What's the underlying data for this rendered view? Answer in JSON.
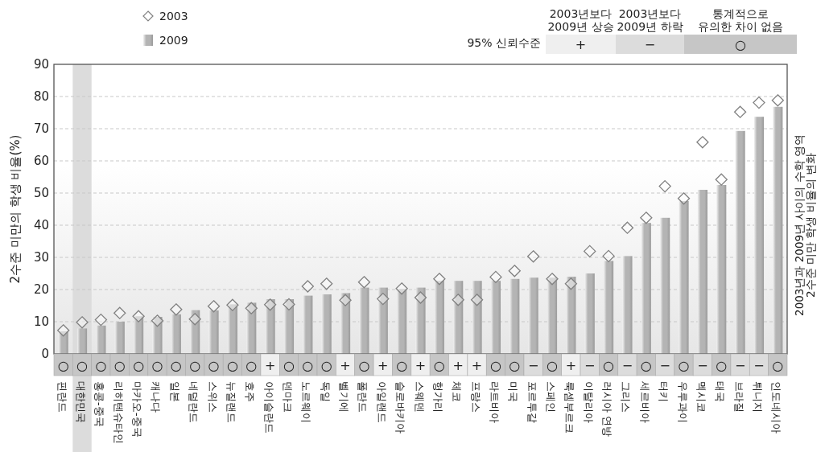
{
  "chart_data": {
    "type": "bar",
    "ylabel": "2수준 미만의 학생 비율(%)",
    "categories": [
      "핀란드",
      "대한민국",
      "홍콩-중국",
      "리히텐슈타인",
      "마카오-중국",
      "캐나다",
      "일본",
      "네덜란드",
      "스위스",
      "뉴질랜드",
      "호주",
      "아이슬란드",
      "덴마크",
      "노르웨이",
      "독일",
      "벨기에",
      "폴란드",
      "아일랜드",
      "슬로바키아",
      "스웨덴",
      "헝가리",
      "체코",
      "프랑스",
      "라트비아",
      "미국",
      "포르투갈",
      "스페인",
      "룩셈부르크",
      "이탈리아",
      "러시아 연방",
      "그리스",
      "세르비아",
      "터키",
      "우루과이",
      "멕시코",
      "태국",
      "브라질",
      "튀니지",
      "인도네시아"
    ],
    "series": [
      {
        "name": "2009",
        "color": "#b4b4b4",
        "values": [
          7.0,
          7.9,
          8.8,
          10.0,
          11.7,
          11.5,
          12.3,
          13.6,
          13.5,
          15.4,
          15.9,
          17.0,
          17.0,
          18.1,
          18.5,
          18.9,
          20.6,
          20.6,
          20.2,
          20.6,
          22.7,
          22.7,
          22.7,
          22.7,
          23.3,
          23.7,
          23.7,
          24.0,
          25.0,
          28.9,
          30.4,
          40.7,
          42.3,
          47.5,
          51.0,
          52.5,
          69.3,
          73.7,
          76.8
        ]
      },
      {
        "name": "2003",
        "type": "scatter",
        "marker": "diamond",
        "color": "#808080",
        "values": [
          7.3,
          9.8,
          10.6,
          12.7,
          11.7,
          10.3,
          13.8,
          10.8,
          14.8,
          15.2,
          14.2,
          15.3,
          15.4,
          21.0,
          21.8,
          16.7,
          22.3,
          17.1,
          20.3,
          17.5,
          23.3,
          16.8,
          16.8,
          23.9,
          25.8,
          30.3,
          23.3,
          21.8,
          31.9,
          30.4,
          39.2,
          42.3,
          52.1,
          48.3,
          65.8,
          54.2,
          75.2,
          78.1,
          78.8
        ]
      }
    ],
    "ylim": [
      0,
      90
    ],
    "yticks": [
      0,
      10,
      20,
      30,
      40,
      50,
      60,
      70,
      80,
      90
    ],
    "grid": "y",
    "legend": "top left",
    "bands": [
      {
        "axis": "x",
        "from": "대한민국",
        "to": "대한민국",
        "color": "#dcdcdc"
      }
    ],
    "annotations": [
      "95% 신뢰수준",
      "2003년보다\n2009년 상승",
      "2003년보다\n2009년 하락",
      "통계적으로\n유의한 차이 없음",
      "+",
      "−",
      "○",
      "2003년과 2009년 사이의 수학 영역\n2수준 미만 학생 비율의 변화",
      {
        "text": "○",
        "x": "핀란드"
      },
      {
        "text": "○",
        "x": "대한민국"
      },
      {
        "text": "○",
        "x": "홍콩-중국"
      },
      {
        "text": "○",
        "x": "리히텐슈타인"
      },
      {
        "text": "○",
        "x": "마카오-중국"
      },
      {
        "text": "○",
        "x": "캐나다"
      },
      {
        "text": "○",
        "x": "일본"
      },
      {
        "text": "○",
        "x": "네덜란드"
      },
      {
        "text": "○",
        "x": "스위스"
      },
      {
        "text": "○",
        "x": "뉴질랜드"
      },
      {
        "text": "○",
        "x": "호주"
      },
      {
        "text": "+",
        "x": "아이슬란드"
      },
      {
        "text": "○",
        "x": "덴마크"
      },
      {
        "text": "○",
        "x": "노르웨이"
      },
      {
        "text": "○",
        "x": "독일"
      },
      {
        "text": "+",
        "x": "벨기에"
      },
      {
        "text": "○",
        "x": "폴란드"
      },
      {
        "text": "+",
        "x": "아일랜드"
      },
      {
        "text": "○",
        "x": "슬로바키아"
      },
      {
        "text": "+",
        "x": "스웨덴"
      },
      {
        "text": "○",
        "x": "헝가리"
      },
      {
        "text": "+",
        "x": "체코"
      },
      {
        "text": "+",
        "x": "프랑스"
      },
      {
        "text": "○",
        "x": "라트비아"
      },
      {
        "text": "○",
        "x": "미국"
      },
      {
        "text": "−",
        "x": "포르투갈"
      },
      {
        "text": "○",
        "x": "스페인"
      },
      {
        "text": "+",
        "x": "룩셈부르크"
      },
      {
        "text": "−",
        "x": "이탈리아"
      },
      {
        "text": "○",
        "x": "러시아 연방"
      },
      {
        "text": "−",
        "x": "그리스"
      },
      {
        "text": "○",
        "x": "세르비아"
      },
      {
        "text": "−",
        "x": "터키"
      },
      {
        "text": "○",
        "x": "우루과이"
      },
      {
        "text": "−",
        "x": "멕시코"
      },
      {
        "text": "○",
        "x": "태국"
      },
      {
        "text": "−",
        "x": "브라질"
      },
      {
        "text": "−",
        "x": "튀니지"
      },
      {
        "text": "○",
        "x": "인도네시아"
      }
    ]
  }
}
